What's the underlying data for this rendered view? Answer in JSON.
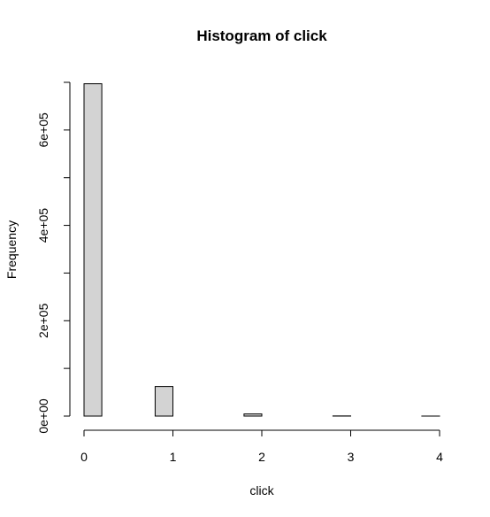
{
  "chart_data": {
    "type": "bar",
    "title": "Histogram of click",
    "xlabel": "click",
    "ylabel": "Frequency",
    "bin_edges": [
      0,
      0.2,
      0.4,
      0.6,
      0.8,
      1.0,
      1.2,
      1.4,
      1.6,
      1.8,
      2.0,
      2.2,
      2.4,
      2.6,
      2.8,
      3.0,
      3.2,
      3.4,
      3.6,
      3.8,
      4.0
    ],
    "values": [
      697000,
      0,
      0,
      0,
      62000,
      0,
      0,
      0,
      0,
      4500,
      0,
      0,
      0,
      0,
      300,
      0,
      0,
      0,
      0,
      20
    ],
    "xlim": [
      0,
      4
    ],
    "ylim": [
      0,
      700000
    ],
    "x_ticks": [
      0,
      1,
      2,
      3,
      4
    ],
    "x_tick_labels": [
      "0",
      "1",
      "2",
      "3",
      "4"
    ],
    "y_ticks": [
      0,
      100000,
      200000,
      300000,
      400000,
      500000,
      600000,
      700000
    ],
    "y_tick_labels": [
      "0e+00",
      "",
      "2e+05",
      "",
      "4e+05",
      "",
      "6e+05",
      ""
    ],
    "bar_fill": "#d3d3d3",
    "bar_stroke": "#000000",
    "grid": false,
    "legend": "none"
  }
}
